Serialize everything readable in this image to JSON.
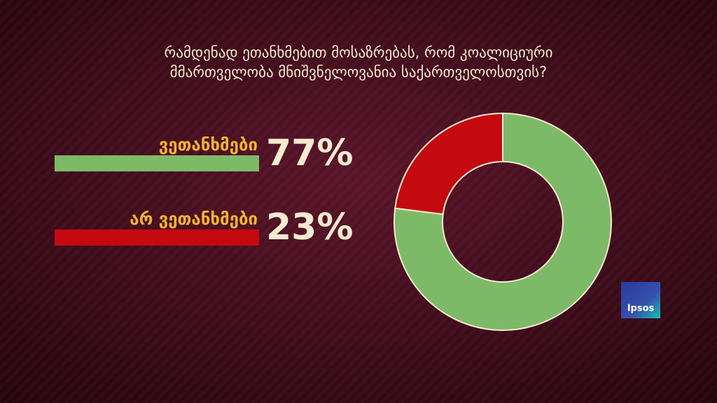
{
  "chart_data": {
    "type": "pie",
    "donut": true,
    "title": [
      "რამდენად ეთანხმებით მოსაზრებას, რომ კოალიციური",
      "მმართველობა მნიშვნელოვანია საქართველოსთვის?"
    ],
    "categories": [
      "ვეთანხმები",
      "არ ვეთანხმები"
    ],
    "values": [
      77,
      23
    ],
    "value_labels": [
      "77%",
      "23%"
    ],
    "colors": [
      "#7dba68",
      "#c40a10"
    ]
  },
  "logo": "Ipsos"
}
